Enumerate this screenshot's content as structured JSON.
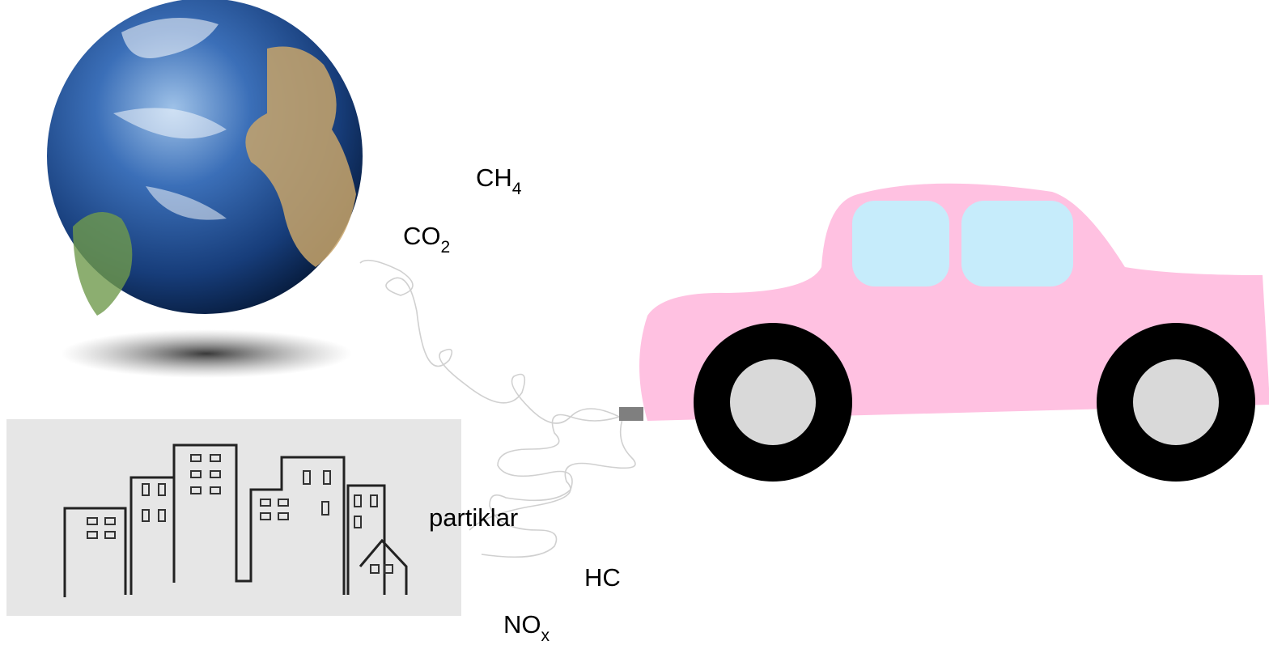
{
  "labels": [
    {
      "text": "CH",
      "sub": "4"
    },
    {
      "text": "CO",
      "sub": "2"
    },
    {
      "text": "partiklar"
    },
    {
      "text": "HC"
    },
    {
      "text": "NO",
      "sub": "x"
    }
  ]
}
